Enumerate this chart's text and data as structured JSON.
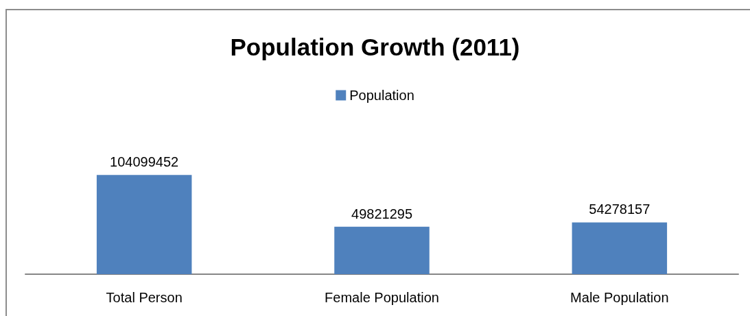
{
  "chart_data": {
    "type": "bar",
    "title": "Population Growth (2011)",
    "categories": [
      "Total Person",
      "Female Population",
      "Male Population"
    ],
    "series": [
      {
        "name": "Population",
        "color": "#4f81bd",
        "values": [
          104099452,
          49821295,
          54278157
        ]
      }
    ],
    "data_labels": true,
    "legend": "top",
    "tick_labels": "x"
  }
}
